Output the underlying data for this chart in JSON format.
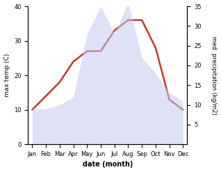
{
  "months": [
    "Jan",
    "Feb",
    "Mar",
    "Apr",
    "May",
    "Jun",
    "Jul",
    "Aug",
    "Sep",
    "Oct",
    "Nov",
    "Dec"
  ],
  "temperature": [
    10,
    14,
    18,
    24,
    27,
    27,
    33,
    36,
    36,
    28,
    13,
    10
  ],
  "precipitation": [
    9,
    9,
    10,
    12,
    28,
    35,
    28,
    36,
    22,
    18,
    13,
    11
  ],
  "temp_color": "#c0392b",
  "precip_fill_color": "#c5caf0",
  "left_ylabel": "max temp (C)",
  "right_ylabel": "med. precipitation (kg/m2)",
  "xlabel": "date (month)",
  "ylim_left": [
    0,
    40
  ],
  "ylim_right": [
    0,
    35
  ],
  "yticks_left": [
    0,
    10,
    20,
    30,
    40
  ],
  "yticks_right": [
    5,
    10,
    15,
    20,
    25,
    30,
    35
  ],
  "bg_color": "#ffffff",
  "line_width": 1.8,
  "precip_alpha": 0.55
}
